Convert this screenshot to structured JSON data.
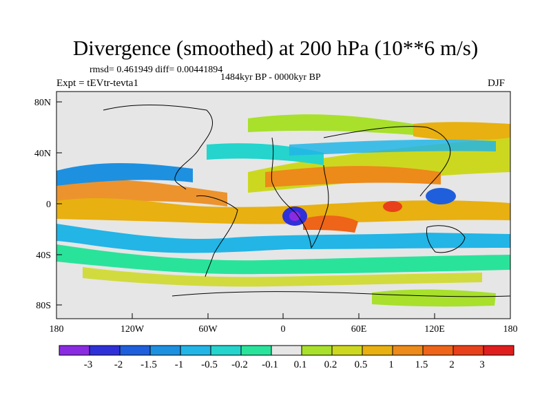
{
  "map": {
    "title": "Divergence (smoothed) at 200 hPa (10**6 m/s)",
    "stats_line": "rmsd= 0.461949 diff= 0.00441894",
    "period": "1484kyr BP - 0000kyr BP",
    "experiment": "Expt = tEVtr-tevta1",
    "season": "DJF",
    "lat_ticks": [
      "80N",
      "40N",
      "0",
      "40S",
      "80S"
    ],
    "lon_ticks": [
      "180",
      "120W",
      "60W",
      "0",
      "60E",
      "120E",
      "180"
    ],
    "background_color": "#e6e6e6"
  },
  "colorbar": {
    "labels": [
      "-3",
      "-2",
      "-1.5",
      "-1",
      "-0.5",
      "-0.2",
      "-0.1",
      "0.1",
      "0.2",
      "0.5",
      "1",
      "1.5",
      "2",
      "3"
    ],
    "colors": [
      "#8a2be2",
      "#3030d8",
      "#1f5fdc",
      "#1e90e0",
      "#22b5e6",
      "#25d4cc",
      "#2ae39a",
      "#e6e6e6",
      "#a8e02c",
      "#ccd820",
      "#e8b010",
      "#ec8a1a",
      "#ee6418",
      "#e8401a",
      "#e01e1e"
    ]
  }
}
